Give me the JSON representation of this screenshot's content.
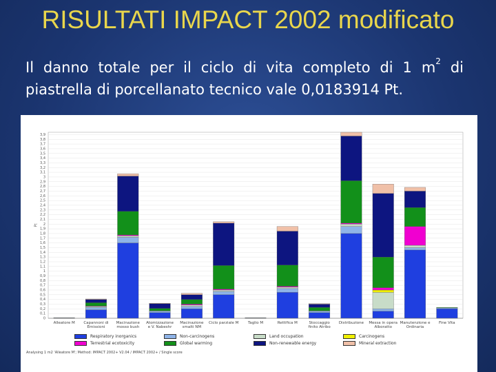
{
  "slide": {
    "title": "RISULTATI IMPACT 2002 modificato",
    "text_before": "Il danno totale per il ciclo di vita completo di 1 m",
    "superscript": "2",
    "text_after": " di piastrella di porcellanato tecnico vale 0,0183914 Pt."
  },
  "chart_data": {
    "type": "stacked_bar",
    "y_label": "Pt",
    "note": "Analysing 1 m2 'Alleatore M'; Method: IMPACT 2002+ V2.04 / IMPACT 2002+ / Single score",
    "categories": [
      "Alleatore M",
      "Capannoni di Emissioni",
      "Macinazione mosso bush",
      "Atomizzazione e V. Nabeshr",
      "Macinazione smalti NM",
      "Ciclo parziale M",
      "Taglio M",
      "Rettifica M",
      "Stoccaggio finito Atribo",
      "Distribuzione",
      "Messa in opera Alboratto",
      "Manutenzione e Ordinaria",
      "Fine Vita"
    ],
    "series": [
      {
        "name": "Respiratory inorganics",
        "color": "#1f3fe0",
        "values": [
          0.005,
          0.18,
          1.6,
          0.12,
          0.2,
          0.5,
          0.005,
          0.55,
          0.12,
          1.8,
          0.15,
          1.45,
          0.2
        ]
      },
      {
        "name": "Non-carcinogens",
        "color": "#8fb4e8",
        "values": [
          0,
          0.05,
          0.12,
          0.03,
          0.05,
          0.07,
          0,
          0.08,
          0.03,
          0.15,
          0.05,
          0.05,
          0.02
        ]
      },
      {
        "name": "Land occupation",
        "color": "#c8dcc8",
        "values": [
          0,
          0.02,
          0.03,
          0.01,
          0.03,
          0.03,
          0,
          0.03,
          0.01,
          0.05,
          0.35,
          0.05,
          0
        ]
      },
      {
        "name": "Carcinogens",
        "color": "#f0f000",
        "values": [
          0,
          0,
          0,
          0,
          0,
          0,
          0,
          0,
          0,
          0,
          0.05,
          0,
          0
        ]
      },
      {
        "name": "Terrestrial ecotoxicity",
        "color": "#f000d0",
        "values": [
          0,
          0.01,
          0.02,
          0,
          0.02,
          0.02,
          0,
          0.02,
          0,
          0.02,
          0.05,
          0.4,
          0
        ]
      },
      {
        "name": "Global warming",
        "color": "#12901a",
        "values": [
          0.002,
          0.07,
          0.5,
          0.05,
          0.1,
          0.5,
          0.002,
          0.45,
          0.07,
          0.9,
          0.65,
          0.4,
          0.01
        ]
      },
      {
        "name": "Non-renewable energy",
        "color": "#0d1580",
        "values": [
          0.003,
          0.07,
          0.75,
          0.1,
          0.1,
          0.9,
          0.003,
          0.72,
          0.07,
          0.95,
          1.35,
          0.35,
          0
        ]
      },
      {
        "name": "Mineral extraction",
        "color": "#f0c0a8",
        "values": [
          0,
          0.01,
          0.05,
          0.01,
          0.03,
          0.03,
          0,
          0.1,
          0.01,
          0.08,
          0.2,
          0.08,
          0
        ]
      }
    ],
    "ylim": [
      0,
      3.95
    ],
    "yticks": [
      0,
      {
        "value": 0.1,
        "label": "0,1"
      },
      {
        "value": 0.2,
        "label": "0,2"
      },
      {
        "value": 0.3,
        "label": "0,3"
      },
      {
        "value": 0.4,
        "label": "0,4"
      },
      {
        "value": 0.5,
        "label": "0,5"
      },
      {
        "value": 0.6,
        "label": "0,6"
      },
      {
        "value": 0.7,
        "label": "0,7"
      },
      {
        "value": 0.8,
        "label": "0,8"
      },
      {
        "value": 0.9,
        "label": "0,9"
      },
      1,
      {
        "value": 1.1,
        "label": "1,1"
      },
      {
        "value": 1.2,
        "label": "1,2"
      },
      {
        "value": 1.3,
        "label": "1,3"
      },
      {
        "value": 1.4,
        "label": "1,4"
      },
      {
        "value": 1.5,
        "label": "1,5"
      },
      {
        "value": 1.6,
        "label": "1,6"
      },
      {
        "value": 1.7,
        "label": "1,7"
      },
      {
        "value": 1.8,
        "label": "1,8"
      },
      {
        "value": 1.9,
        "label": "1,9"
      },
      2,
      {
        "value": 2.1,
        "label": "2,1"
      },
      {
        "value": 2.2,
        "label": "2,2"
      },
      {
        "value": 2.3,
        "label": "2,3"
      },
      {
        "value": 2.4,
        "label": "2,4"
      },
      {
        "value": 2.5,
        "label": "2,5"
      },
      {
        "value": 2.6,
        "label": "2,6"
      },
      {
        "value": 2.7,
        "label": "2,7"
      },
      {
        "value": 2.8,
        "label": "2,8"
      },
      {
        "value": 2.9,
        "label": "2,9"
      },
      3,
      {
        "value": 3.1,
        "label": "3,1"
      },
      {
        "value": 3.2,
        "label": "3,2"
      },
      {
        "value": 3.3,
        "label": "3,3"
      },
      {
        "value": 3.4,
        "label": "3,4"
      },
      {
        "value": 3.5,
        "label": "3,5"
      },
      {
        "value": 3.6,
        "label": "3,6"
      },
      {
        "value": 3.7,
        "label": "3,7"
      },
      {
        "value": 3.8,
        "label": "3,8"
      },
      {
        "value": 3.9,
        "label": "3,9"
      }
    ],
    "grid": true
  }
}
